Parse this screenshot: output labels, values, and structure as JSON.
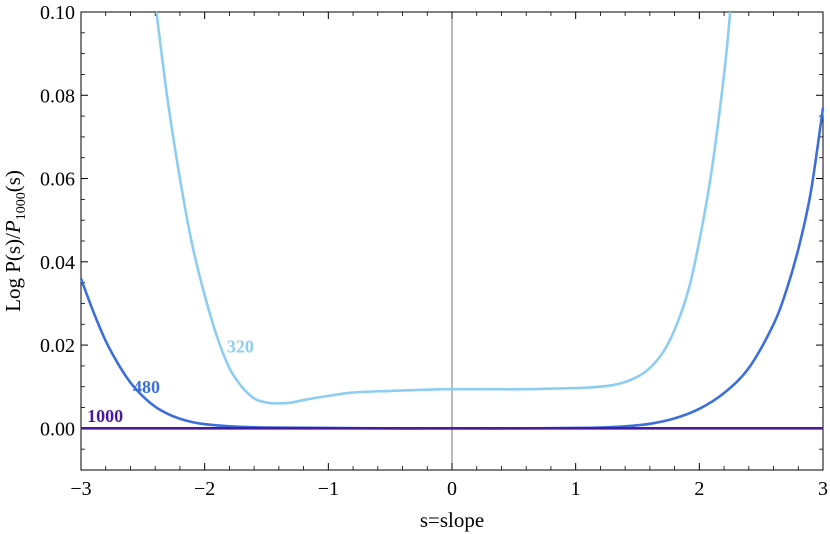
{
  "chart_data": {
    "type": "line",
    "xlabel": "s=slope",
    "ylabel_main": "Log P(s)/",
    "ylabel_italic": "P",
    "ylabel_sub": "1000",
    "ylabel_tail": "(s)",
    "xlim": [
      -3,
      3
    ],
    "ylim": [
      -0.01,
      0.1
    ],
    "xticks": [
      -3,
      -2,
      -1,
      0,
      1,
      2,
      3
    ],
    "xtick_labels": [
      "−3",
      "−2",
      "−1",
      "0",
      "1",
      "2",
      "3"
    ],
    "yticks": [
      0.0,
      0.02,
      0.04,
      0.06,
      0.08,
      0.1
    ],
    "ytick_labels": [
      "0.00",
      "0.02",
      "0.04",
      "0.06",
      "0.08",
      "0.10"
    ],
    "colors": {
      "320": "#8ecdf2",
      "480": "#3c6fd8",
      "1000": "#4a1aa0",
      "axis": "#000000"
    },
    "series": [
      {
        "name": "320",
        "label_at": [
          -1.82,
          0.0182
        ],
        "x": [
          -2.39,
          -2.3,
          -2.2,
          -2.1,
          -2.0,
          -1.9,
          -1.8,
          -1.7,
          -1.6,
          -1.5,
          -1.4,
          -1.3,
          -1.2,
          -1.0,
          -0.8,
          -0.5,
          -0.2,
          0.0,
          0.3,
          0.6,
          0.9,
          1.1,
          1.3,
          1.45,
          1.6,
          1.75,
          1.9,
          2.0,
          2.1,
          2.2,
          2.25
        ],
        "y": [
          0.1,
          0.079,
          0.06,
          0.044,
          0.032,
          0.022,
          0.0145,
          0.01,
          0.0072,
          0.0062,
          0.006,
          0.0062,
          0.0068,
          0.0078,
          0.0086,
          0.009,
          0.0093,
          0.0094,
          0.0094,
          0.0094,
          0.0096,
          0.0098,
          0.0104,
          0.0117,
          0.0145,
          0.0205,
          0.032,
          0.045,
          0.062,
          0.085,
          0.1
        ]
      },
      {
        "name": "480",
        "label_at": [
          -2.58,
          0.0085
        ],
        "x": [
          -3.0,
          -2.9,
          -2.8,
          -2.7,
          -2.6,
          -2.5,
          -2.4,
          -2.3,
          -2.2,
          -2.1,
          -2.0,
          -1.8,
          -1.5,
          -1.0,
          -0.5,
          0.0,
          0.5,
          1.0,
          1.2,
          1.4,
          1.6,
          1.8,
          2.0,
          2.2,
          2.4,
          2.6,
          2.7,
          2.8,
          2.9,
          3.0
        ],
        "y": [
          0.036,
          0.028,
          0.021,
          0.0155,
          0.011,
          0.0077,
          0.0052,
          0.0035,
          0.0023,
          0.0015,
          0.001,
          0.0005,
          0.0002,
          0.0001,
          0.0,
          0.0,
          0.0,
          0.0001,
          0.0002,
          0.0005,
          0.0011,
          0.0024,
          0.0047,
          0.0085,
          0.0145,
          0.025,
          0.0328,
          0.043,
          0.0565,
          0.077
        ]
      },
      {
        "name": "1000",
        "label_at": [
          -2.95,
          0.0015
        ],
        "x": [
          -3.0,
          3.0
        ],
        "y": [
          0.0,
          0.0
        ]
      }
    ]
  }
}
